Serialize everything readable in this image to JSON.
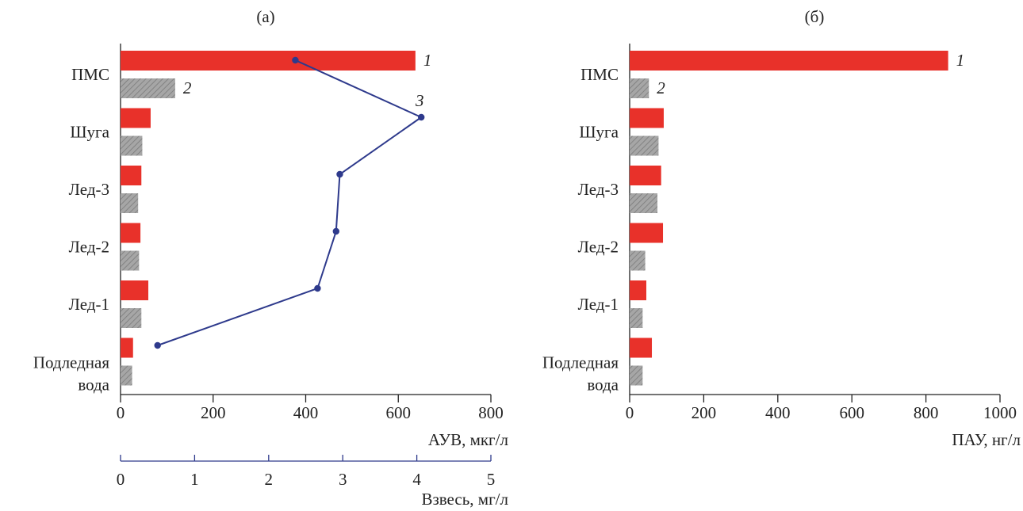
{
  "panel_titles": [
    "(а)",
    "(б)"
  ],
  "colors": {
    "series1": "#e8312a",
    "series2": "#a6a6a6",
    "series3": "#2e3a8c",
    "axis": "#222222"
  },
  "chart_data": [
    {
      "type": "bar",
      "panel": "(а)",
      "categories": [
        "ПМС",
        "Шуга",
        "Лед-3",
        "Лед-2",
        "Лед-1",
        "Подледная вода"
      ],
      "category_lines": [
        [
          "ПМС"
        ],
        [
          "Шуга"
        ],
        [
          "Лед-3"
        ],
        [
          "Лед-2"
        ],
        [
          "Лед-1"
        ],
        [
          "Подледная",
          "вода"
        ]
      ],
      "series": [
        {
          "name": "1",
          "values": [
            637,
            65,
            45,
            43,
            60,
            27
          ]
        },
        {
          "name": "2",
          "values": [
            118,
            47,
            38,
            40,
            45,
            25
          ]
        }
      ],
      "xlabel": "АУВ, мкг/л",
      "xlim": [
        0,
        800
      ],
      "xticks": [
        "0",
        "200",
        "400",
        "600",
        "800"
      ],
      "grid": false,
      "secondary_axis": {
        "type": "line",
        "series_name": "3",
        "xlabel": "Взвесь, мг/л",
        "xlim": [
          0,
          5
        ],
        "xticks": [
          "0",
          "1",
          "2",
          "3",
          "4",
          "5"
        ],
        "values": [
          2.36,
          4.06,
          2.96,
          2.91,
          2.66,
          0.5
        ]
      }
    },
    {
      "type": "bar",
      "panel": "(б)",
      "categories": [
        "ПМС",
        "Шуга",
        "Лед-3",
        "Лед-2",
        "Лед-1",
        "Подледная вода"
      ],
      "category_lines": [
        [
          "ПМС"
        ],
        [
          "Шуга"
        ],
        [
          "Лед-3"
        ],
        [
          "Лед-2"
        ],
        [
          "Лед-1"
        ],
        [
          "Подледная",
          "вода"
        ]
      ],
      "series": [
        {
          "name": "1",
          "values": [
            860,
            92,
            85,
            90,
            45,
            60
          ]
        },
        {
          "name": "2",
          "values": [
            52,
            78,
            75,
            42,
            35,
            35
          ]
        }
      ],
      "xlabel": "ПАУ, нг/л",
      "xlim": [
        0,
        1000
      ],
      "xticks": [
        "0",
        "200",
        "400",
        "600",
        "800",
        "1000"
      ],
      "grid": false
    }
  ]
}
